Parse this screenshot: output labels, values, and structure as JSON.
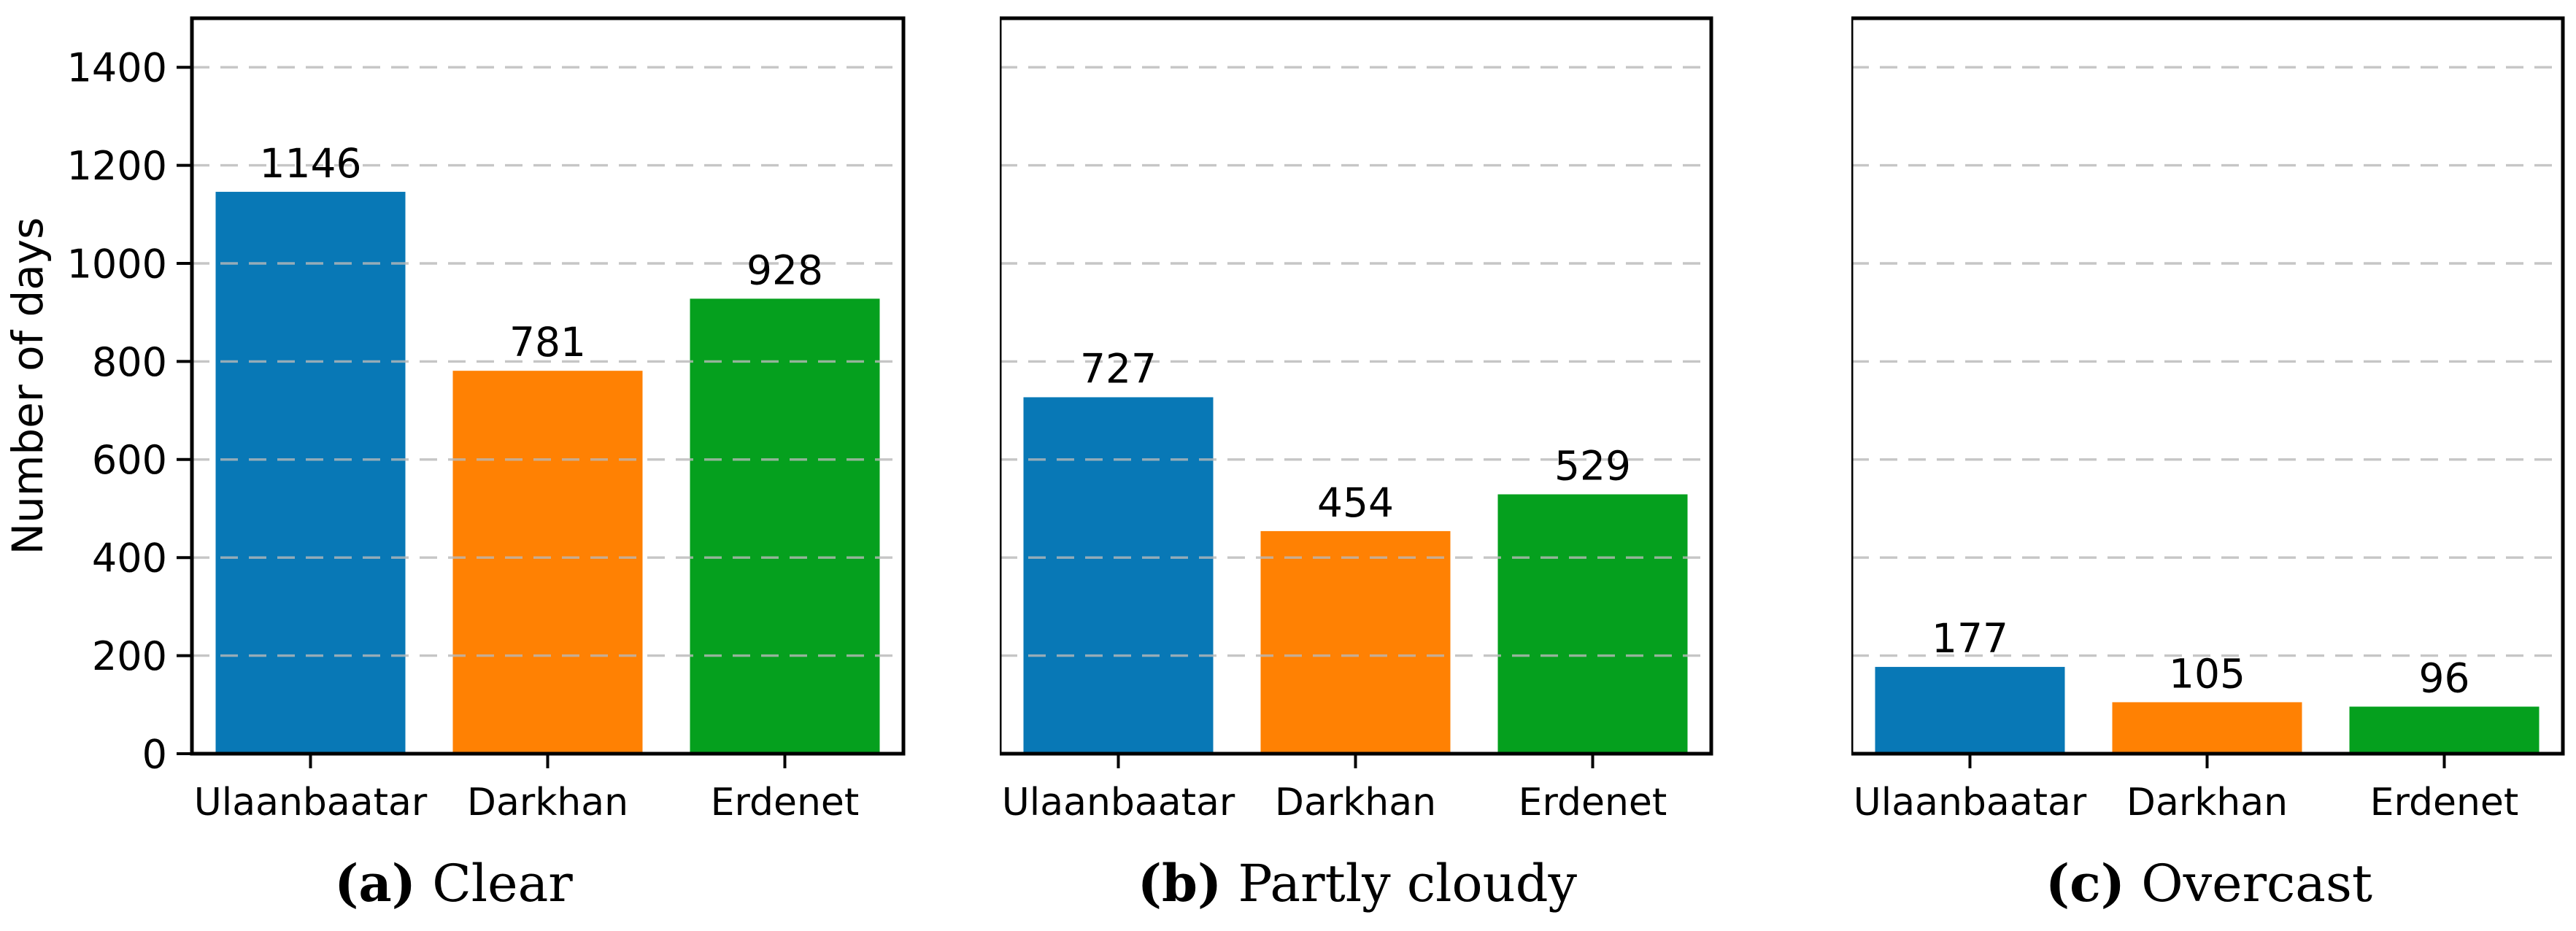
{
  "ui": {
    "paren_open": "(",
    "paren_close": ")"
  },
  "chart_data": [
    {
      "type": "bar",
      "caption_letter": "a",
      "caption_text": "Clear",
      "categories": [
        "Ulaanbaatar",
        "Darkhan",
        "Erdenet"
      ],
      "values": [
        1146,
        781,
        928
      ],
      "bar_labels": [
        "1146",
        "781",
        "928"
      ],
      "bar_colors": [
        "#0878b6",
        "#ff8103",
        "#05a01e"
      ],
      "ylabel": "Number of days",
      "xlabel": "",
      "ylim": [
        0,
        1500
      ],
      "yticks": [
        0,
        200,
        400,
        600,
        800,
        1000,
        1200,
        1400
      ],
      "grid": "horizontal-dashed",
      "legend": "none",
      "show_ytick_labels": true,
      "show_ylabel": true
    },
    {
      "type": "bar",
      "caption_letter": "b",
      "caption_text": "Partly cloudy",
      "categories": [
        "Ulaanbaatar",
        "Darkhan",
        "Erdenet"
      ],
      "values": [
        727,
        454,
        529
      ],
      "bar_labels": [
        "727",
        "454",
        "529"
      ],
      "bar_colors": [
        "#0878b6",
        "#ff8103",
        "#05a01e"
      ],
      "ylabel": "",
      "xlabel": "",
      "ylim": [
        0,
        1500
      ],
      "yticks": [
        0,
        200,
        400,
        600,
        800,
        1000,
        1200,
        1400
      ],
      "grid": "horizontal-dashed",
      "legend": "none",
      "show_ytick_labels": false,
      "show_ylabel": false
    },
    {
      "type": "bar",
      "caption_letter": "c",
      "caption_text": "Overcast",
      "categories": [
        "Ulaanbaatar",
        "Darkhan",
        "Erdenet"
      ],
      "values": [
        177,
        105,
        96
      ],
      "bar_labels": [
        "177",
        "105",
        "96"
      ],
      "bar_colors": [
        "#0878b6",
        "#ff8103",
        "#05a01e"
      ],
      "ylabel": "",
      "xlabel": "",
      "ylim": [
        0,
        1500
      ],
      "yticks": [
        0,
        200,
        400,
        600,
        800,
        1000,
        1200,
        1400
      ],
      "grid": "horizontal-dashed",
      "legend": "none",
      "show_ytick_labels": false,
      "show_ylabel": false
    }
  ]
}
